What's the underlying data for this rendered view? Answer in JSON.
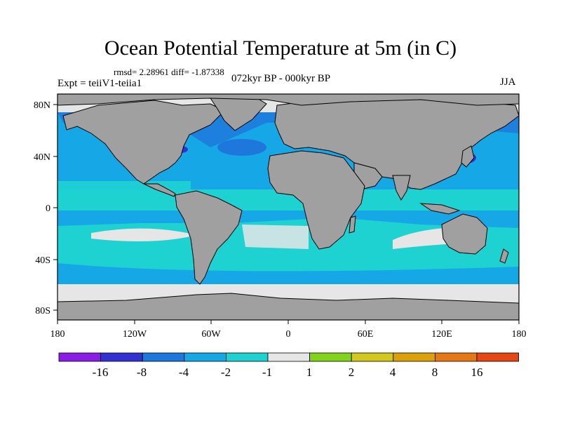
{
  "header": {
    "title": "Ocean Potential Temperature at 5m (in C)",
    "rmsd_line": "rmsd= 2.28961 diff= -1.87338",
    "experiment": "Expt = teiiV1-teiia1",
    "period": "072kyr BP - 000kyr BP",
    "season": "JJA"
  },
  "map": {
    "lon_ticks": [
      "180",
      "120W",
      "60W",
      "0",
      "60E",
      "120E",
      "180"
    ],
    "lat_ticks": [
      "80N",
      "40N",
      "0",
      "40S",
      "80S"
    ],
    "land_color": "#a0a0a0",
    "coastline_color": "#000000"
  },
  "colorbar": {
    "colors": [
      "#8a1ee6",
      "#3232d2",
      "#1e78dc",
      "#16a8e6",
      "#1ed2d2",
      "#e6e6e6",
      "#82d21e",
      "#d2c81e",
      "#dca00a",
      "#e67814",
      "#e64614"
    ],
    "labels": [
      "-16",
      "-8",
      "-4",
      "-2",
      "-1",
      "1",
      "2",
      "4",
      "8",
      "16"
    ]
  }
}
